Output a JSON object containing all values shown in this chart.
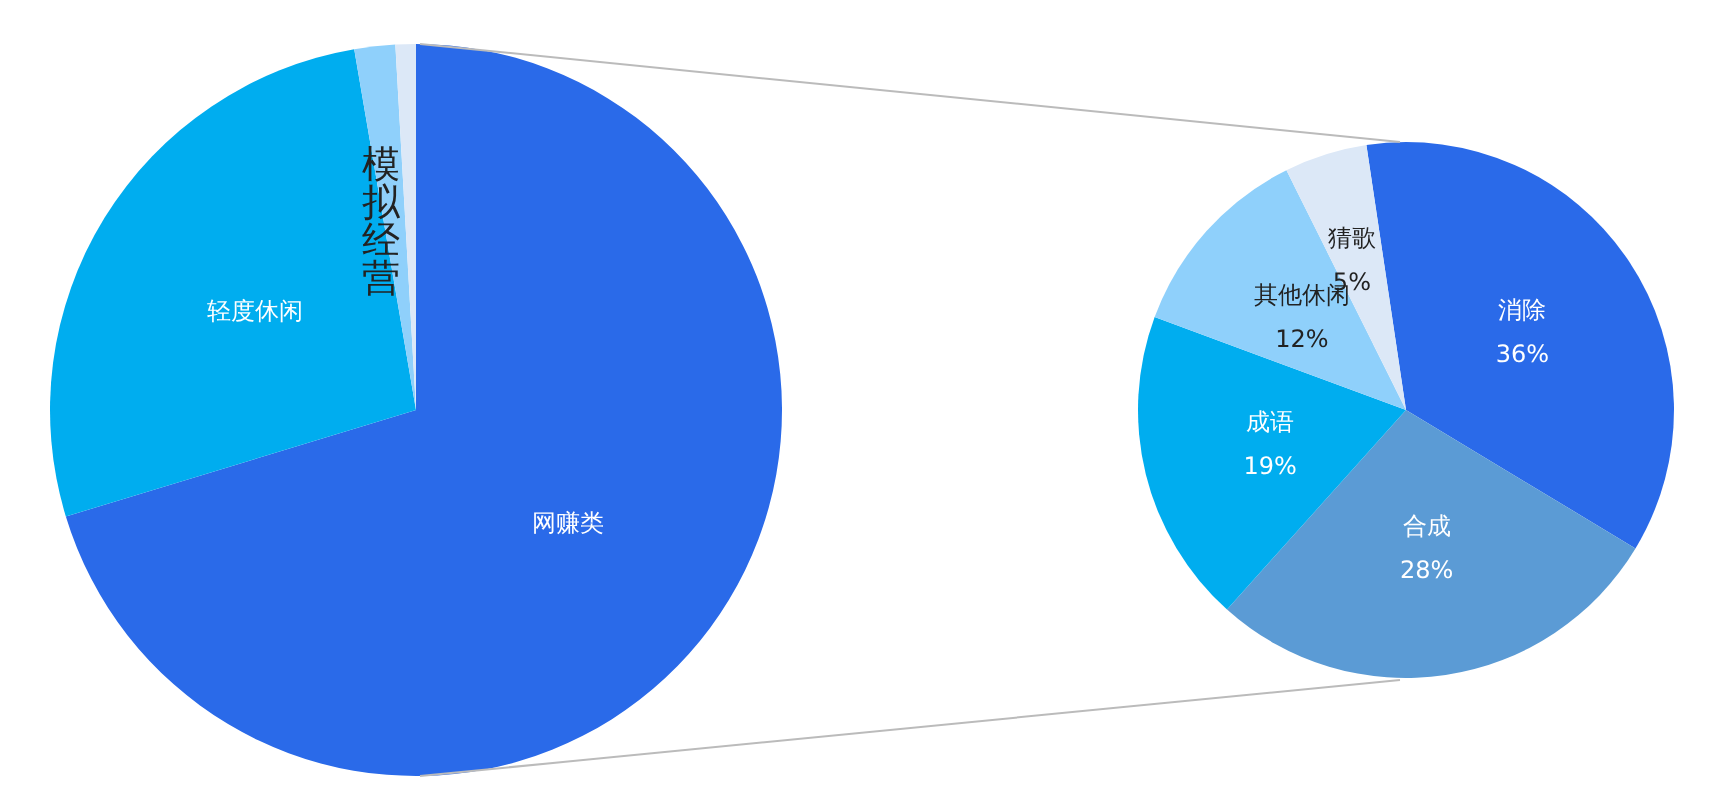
{
  "chart_data": [
    {
      "type": "pie",
      "categories": [
        "网赚类",
        "轻度休闲",
        "模拟经营",
        null
      ],
      "values": [
        70.3,
        27.0,
        1.8,
        0.9
      ],
      "colors": [
        "#2a6ae9",
        "#00adef",
        "#8fd0fb",
        "#dce8f7"
      ]
    },
    {
      "type": "pie",
      "categories": [
        "消除",
        "合成",
        "成语",
        "其他休闲",
        "猜歌"
      ],
      "values": [
        36,
        28,
        19,
        12,
        5
      ],
      "colors": [
        "#2a6ae9",
        "#5b9bd5",
        "#00adef",
        "#8fd0fb",
        "#dce8f7"
      ],
      "value_labels": [
        "36%",
        "28%",
        "19%",
        "12%",
        "5%"
      ]
    }
  ]
}
